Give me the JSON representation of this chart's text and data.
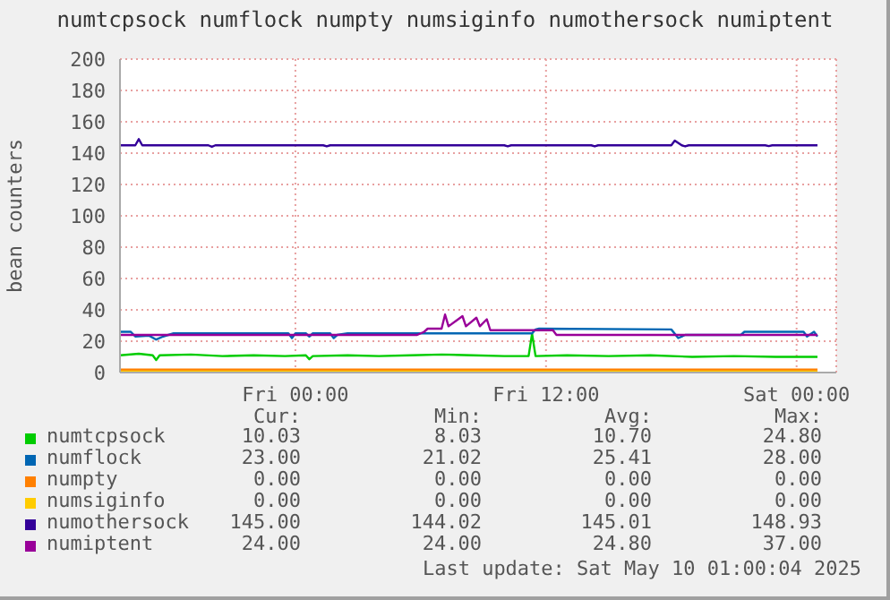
{
  "chart_data": {
    "type": "line",
    "title": "numtcpsock numflock numpty numsiginfo numothersock numiptent",
    "ylabel": "bean counters",
    "xlim": [
      "2025-05-08T15:36",
      "2025-05-10T01:54"
    ],
    "xticks": [
      {
        "value": "2025-05-09T00:00",
        "label": "Fri 00:00"
      },
      {
        "value": "2025-05-09T12:00",
        "label": "Fri 12:00"
      },
      {
        "value": "2025-05-10T00:00",
        "label": "Sat 00:00"
      }
    ],
    "ylim": [
      0,
      200
    ],
    "yticks": [
      0,
      20,
      40,
      60,
      80,
      100,
      120,
      140,
      160,
      180,
      200
    ],
    "grid": true,
    "legend": "bottom",
    "marker": "none",
    "line_style": "solid",
    "series": [
      {
        "name": "numtcpsock",
        "color": "#00cc00",
        "x": [
          "2025-05-08T15:36",
          "2025-05-08T16:30",
          "2025-05-08T17:10",
          "2025-05-08T17:20",
          "2025-05-08T17:30",
          "2025-05-08T19:00",
          "2025-05-08T20:30",
          "2025-05-08T22:00",
          "2025-05-08T23:30",
          "2025-05-09T00:30",
          "2025-05-09T00:40",
          "2025-05-09T00:50",
          "2025-05-09T02:30",
          "2025-05-09T04:00",
          "2025-05-09T05:30",
          "2025-05-09T07:00",
          "2025-05-09T08:30",
          "2025-05-09T10:00",
          "2025-05-09T11:10",
          "2025-05-09T11:20",
          "2025-05-09T11:30",
          "2025-05-09T13:00",
          "2025-05-09T15:00",
          "2025-05-09T17:00",
          "2025-05-09T19:00",
          "2025-05-09T21:00",
          "2025-05-09T23:00",
          "2025-05-10T01:00"
        ],
        "values": [
          11,
          12,
          11,
          8.03,
          11,
          11.5,
          10.5,
          11,
          10.5,
          11,
          8.5,
          10.5,
          11,
          10.5,
          11,
          11.5,
          11,
          10.5,
          10.5,
          24.8,
          10.5,
          11,
          10.5,
          11,
          10,
          10.5,
          10,
          10.03
        ]
      },
      {
        "name": "numflock",
        "color": "#0066b3",
        "x": [
          "2025-05-08T15:36",
          "2025-05-08T16:07",
          "2025-05-08T16:20",
          "2025-05-08T17:00",
          "2025-05-08T17:20",
          "2025-05-08T17:40",
          "2025-05-08T18:10",
          "2025-05-08T23:40",
          "2025-05-08T23:50",
          "2025-05-09T00:00",
          "2025-05-09T00:30",
          "2025-05-09T00:40",
          "2025-05-09T00:50",
          "2025-05-09T01:40",
          "2025-05-09T01:50",
          "2025-05-09T02:00",
          "2025-05-09T02:30",
          "2025-05-09T11:20",
          "2025-05-09T11:30",
          "2025-05-09T11:40",
          "2025-05-09T18:00",
          "2025-05-09T18:20",
          "2025-05-09T18:40",
          "2025-05-09T21:20",
          "2025-05-09T21:30",
          "2025-05-10T00:20",
          "2025-05-10T00:30",
          "2025-05-10T00:50",
          "2025-05-10T01:00"
        ],
        "values": [
          26,
          26,
          23,
          23.5,
          21.02,
          23,
          25,
          25,
          22,
          25,
          25,
          23,
          25,
          25,
          22,
          24,
          25,
          25,
          27.5,
          28,
          27.5,
          22,
          24,
          24,
          26,
          26,
          23,
          26,
          23
        ]
      },
      {
        "name": "numpty",
        "color": "#ff8000",
        "x": [
          "2025-05-08T15:36",
          "2025-05-10T01:00"
        ],
        "values": [
          0,
          0
        ]
      },
      {
        "name": "numsiginfo",
        "color": "#ffcc00",
        "x": [
          "2025-05-08T15:36",
          "2025-05-10T01:00"
        ],
        "values": [
          0,
          0
        ]
      },
      {
        "name": "numothersock",
        "color": "#330099",
        "x": [
          "2025-05-08T15:36",
          "2025-05-08T16:20",
          "2025-05-08T16:30",
          "2025-05-08T16:40",
          "2025-05-08T19:50",
          "2025-05-08T20:00",
          "2025-05-08T20:10",
          "2025-05-09T01:20",
          "2025-05-09T01:30",
          "2025-05-09T01:40",
          "2025-05-09T10:00",
          "2025-05-09T10:10",
          "2025-05-09T10:20",
          "2025-05-09T14:10",
          "2025-05-09T14:20",
          "2025-05-09T14:30",
          "2025-05-09T18:00",
          "2025-05-09T18:10",
          "2025-05-09T18:30",
          "2025-05-09T18:40",
          "2025-05-09T18:50",
          "2025-05-09T22:30",
          "2025-05-09T22:40",
          "2025-05-09T22:50",
          "2025-05-10T01:00"
        ],
        "values": [
          145,
          145,
          148.93,
          145,
          145,
          144.02,
          145,
          145,
          144.3,
          145,
          145,
          144.3,
          145,
          145,
          144.3,
          145,
          145,
          148,
          145,
          144.3,
          145,
          145,
          144.5,
          145,
          145
        ]
      },
      {
        "name": "numiptent",
        "color": "#990099",
        "x": [
          "2025-05-08T15:36",
          "2025-05-09T05:50",
          "2025-05-09T06:10",
          "2025-05-09T06:20",
          "2025-05-09T07:00",
          "2025-05-09T07:10",
          "2025-05-09T07:20",
          "2025-05-09T08:00",
          "2025-05-09T08:10",
          "2025-05-09T08:40",
          "2025-05-09T08:50",
          "2025-05-09T09:10",
          "2025-05-09T09:20",
          "2025-05-09T12:20",
          "2025-05-09T12:30",
          "2025-05-10T01:00"
        ],
        "values": [
          24,
          24,
          26,
          28,
          28,
          37,
          29.5,
          36,
          29.5,
          35,
          29.5,
          34,
          27,
          27,
          24,
          24
        ]
      }
    ],
    "annotations": [
      "Cur:",
      "Min:",
      "Avg:",
      "Max:",
      "10.03",
      "8.03",
      "10.70",
      "24.80",
      "23.00",
      "21.02",
      "25.41",
      "28.00",
      "0.00",
      "0.00",
      "0.00",
      "0.00",
      "0.00",
      "0.00",
      "0.00",
      "0.00",
      "145.00",
      "144.02",
      "145.01",
      "148.93",
      "24.00",
      "24.00",
      "24.80",
      "37.00",
      "Last update: Sat May 10 01:00:04 2025"
    ]
  }
}
